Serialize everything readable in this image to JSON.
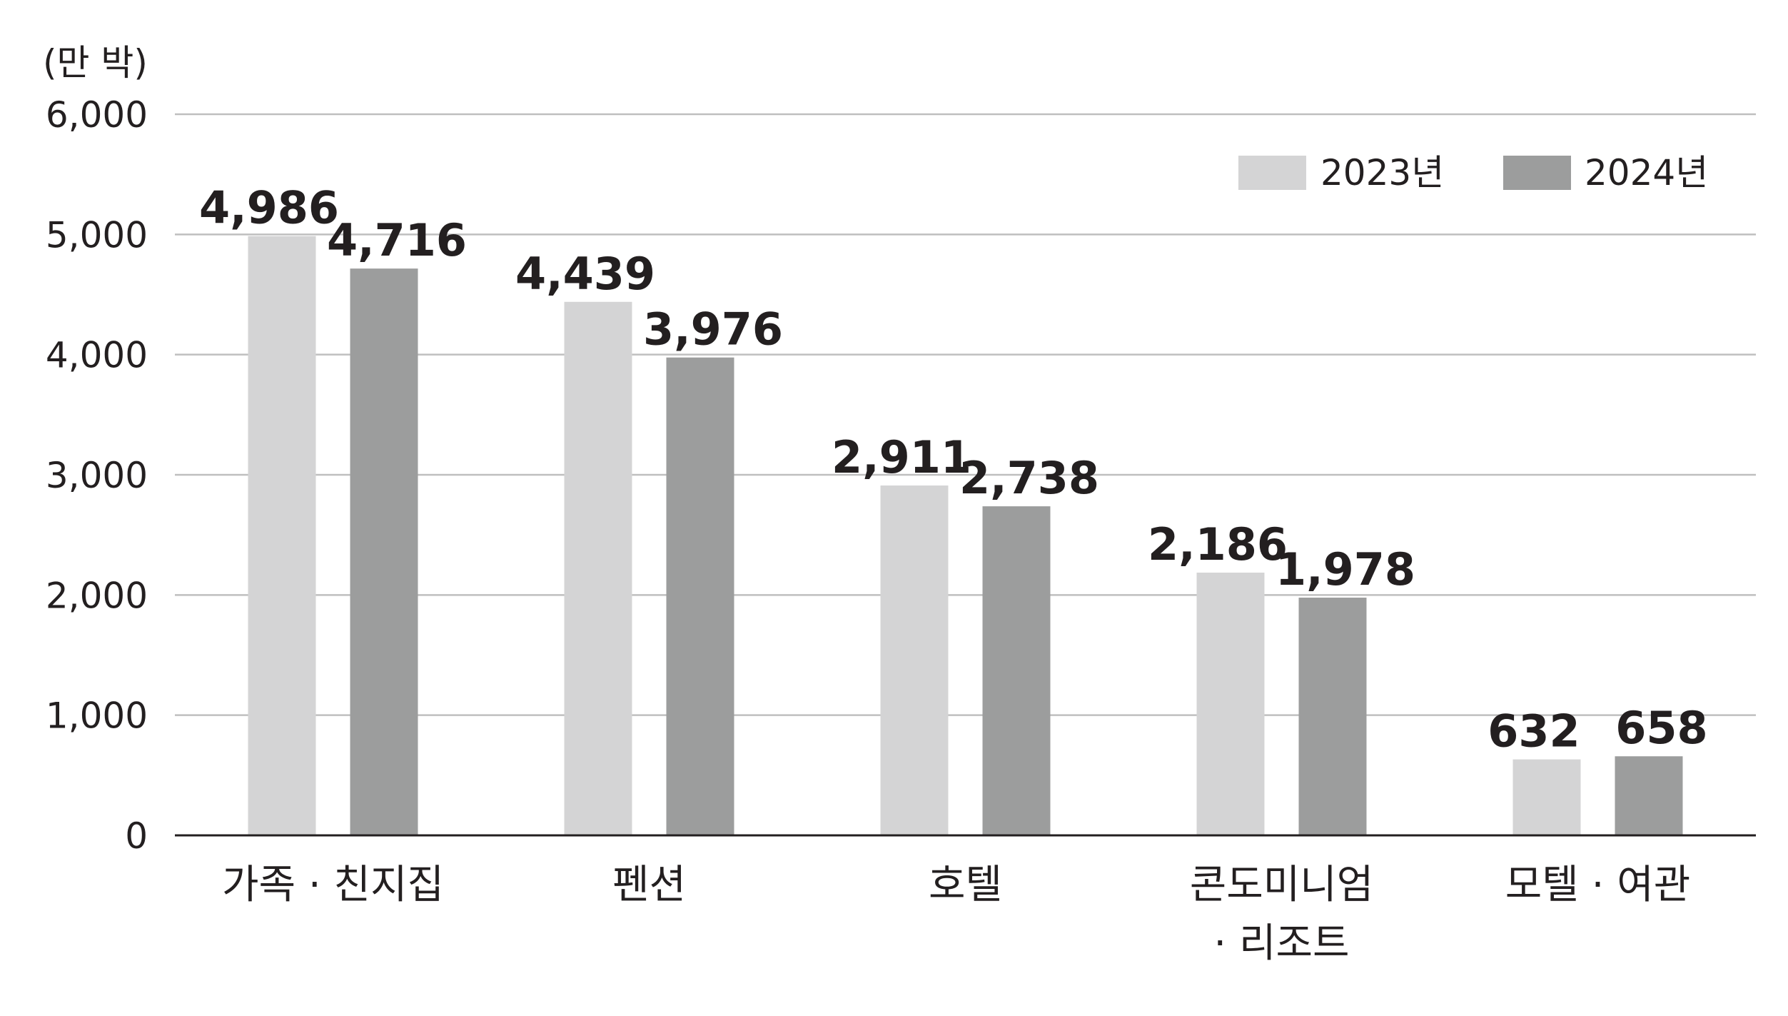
{
  "chart_data": {
    "type": "bar",
    "unit_label": "(만 박)",
    "categories": [
      [
        "가족 · 친지집"
      ],
      [
        "펜션"
      ],
      [
        "호텔"
      ],
      [
        "콘도미니엄",
        "· 리조트"
      ],
      [
        "모텔 · 여관"
      ]
    ],
    "series": [
      {
        "name": "2023년",
        "color": "#d4d4d5",
        "values": [
          4986,
          4439,
          2911,
          2186,
          632
        ]
      },
      {
        "name": "2024년",
        "color": "#9c9d9d",
        "values": [
          4716,
          3976,
          2738,
          1978,
          658
        ]
      }
    ],
    "ylim": [
      0,
      6000
    ],
    "yticks": [
      0,
      1000,
      2000,
      3000,
      4000,
      5000,
      6000
    ],
    "ytick_labels": [
      "0",
      "1,000",
      "2,000",
      "3,000",
      "4,000",
      "5,000",
      "6,000"
    ],
    "value_labels": [
      [
        "4,986",
        "4,439",
        "2,911",
        "2,186",
        "632"
      ],
      [
        "4,716",
        "3,976",
        "2,738",
        "1,978",
        "658"
      ]
    ],
    "grid": true,
    "legend_position": "top-right",
    "gridline_color": "#bfbfbf",
    "axis_color": "#231f20"
  }
}
